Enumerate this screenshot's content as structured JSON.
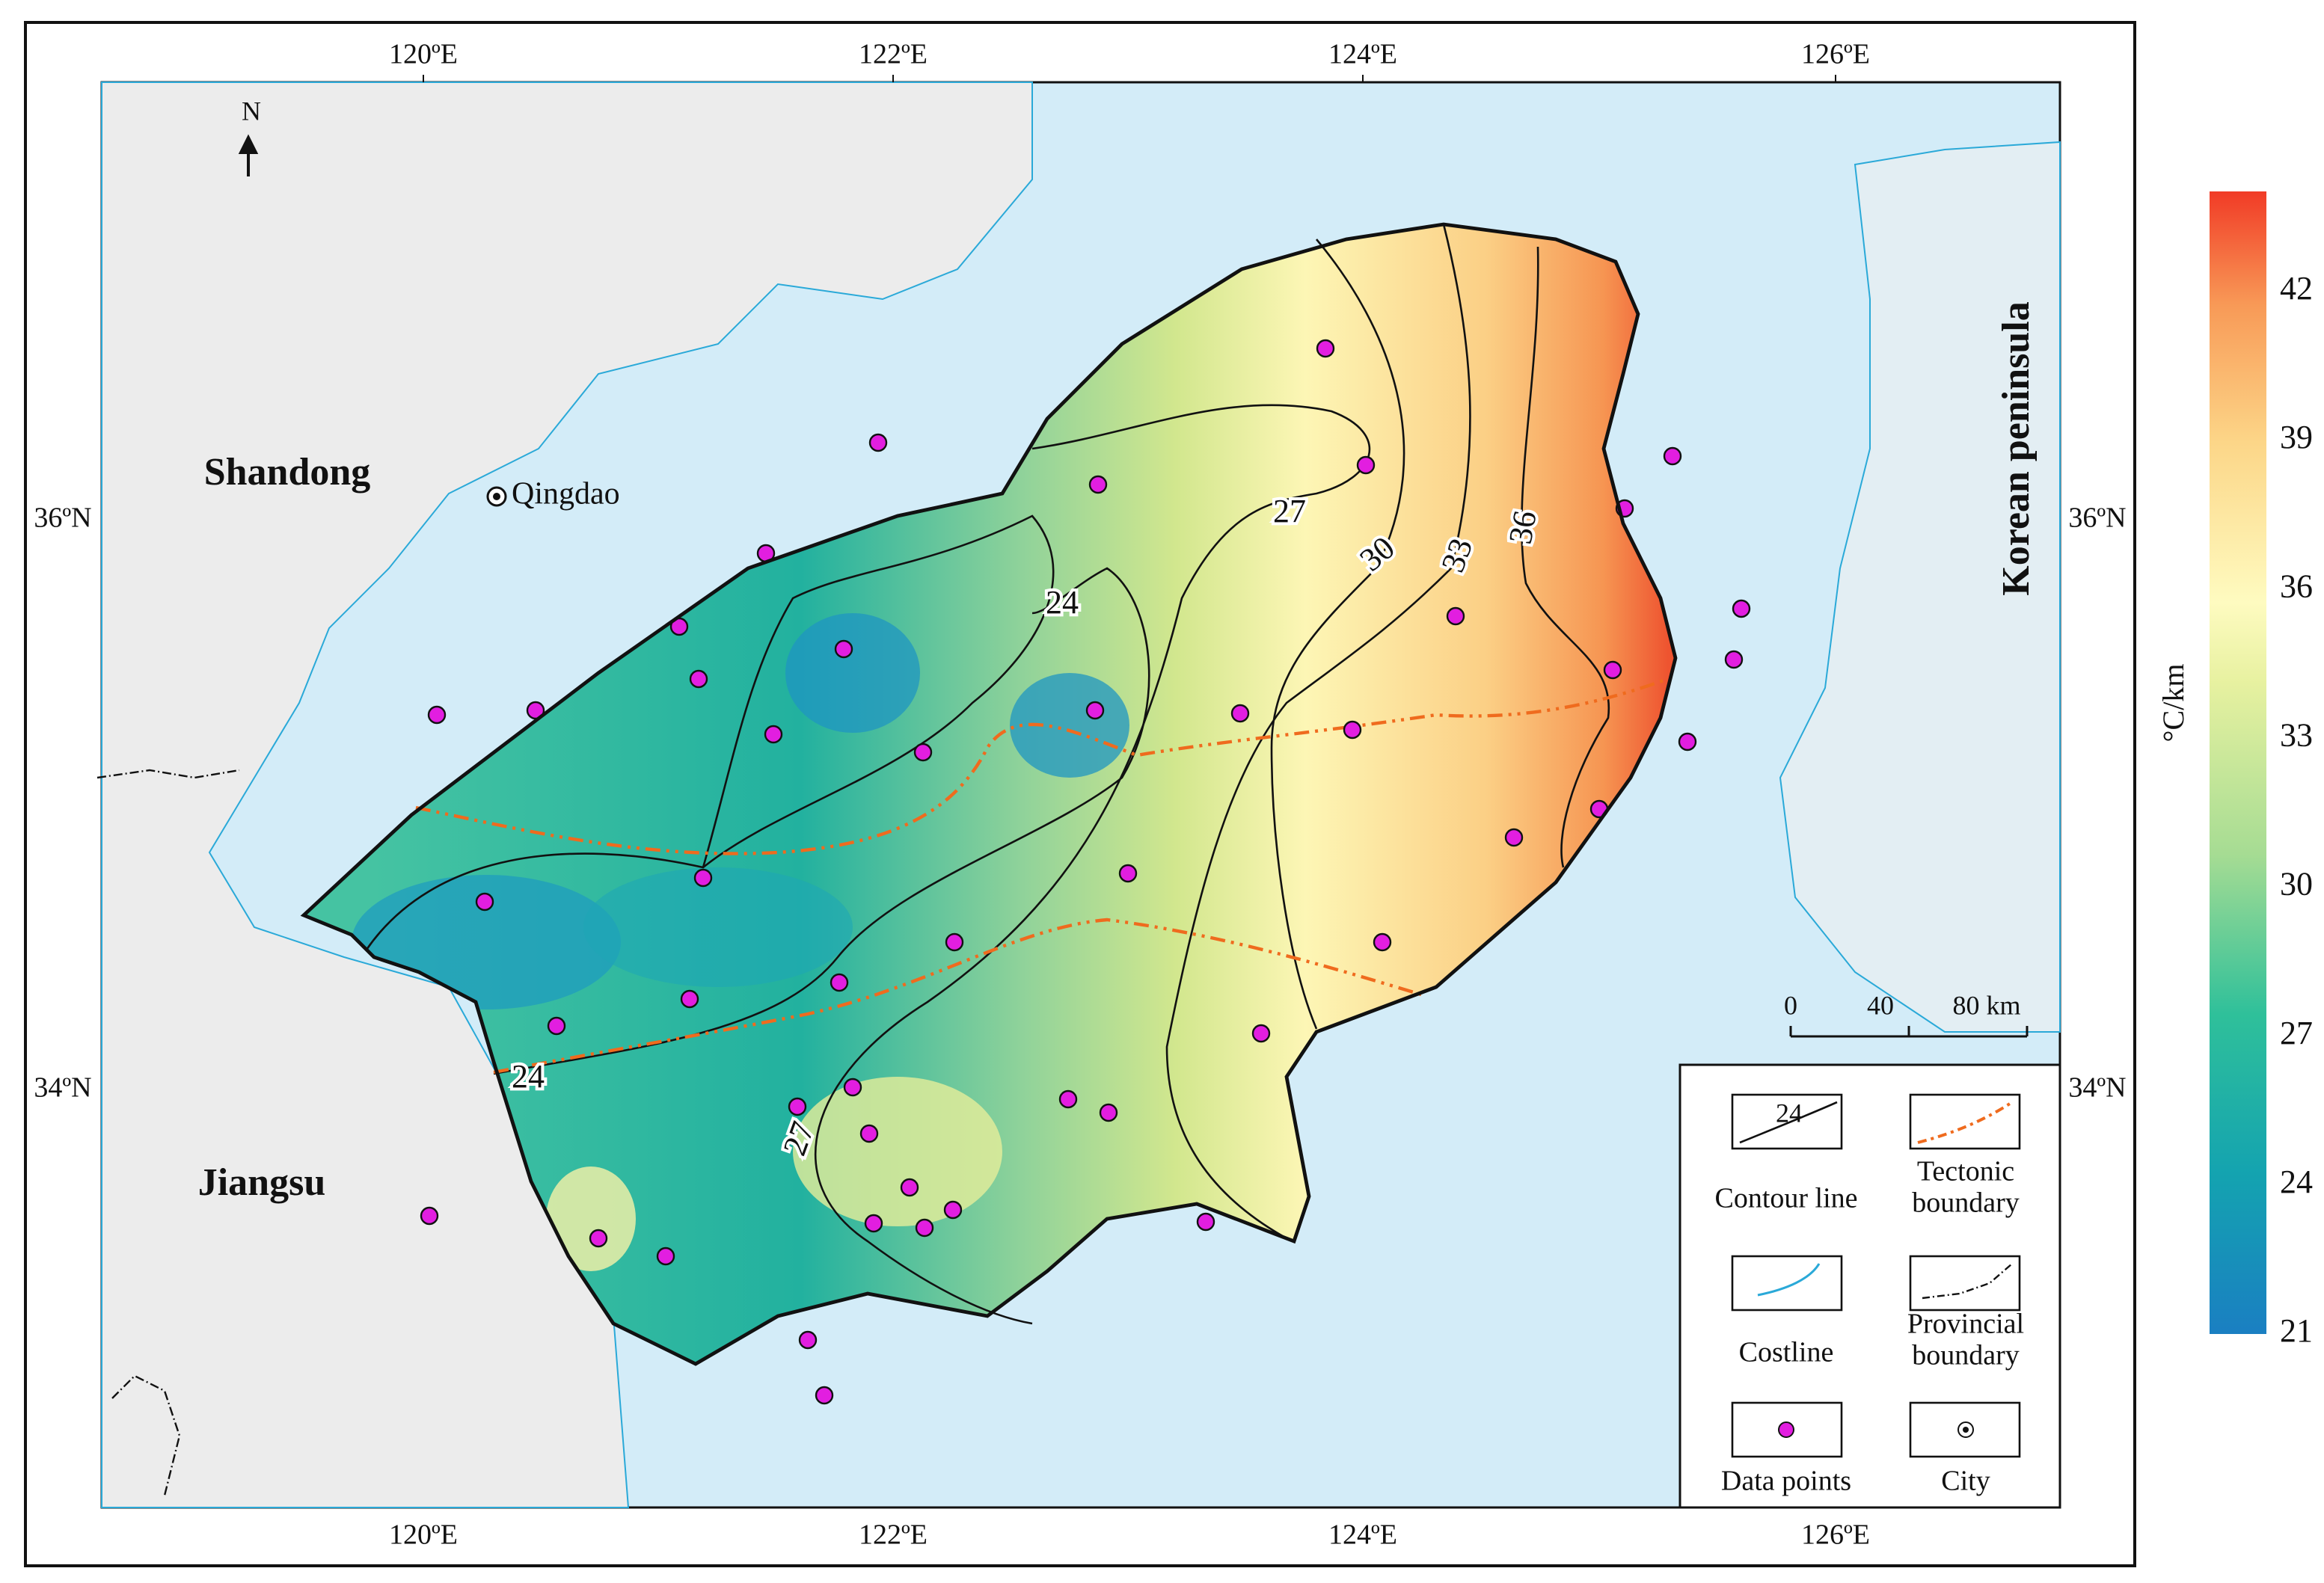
{
  "map": {
    "lon_labels": [
      "120ºE",
      "122ºE",
      "124ºE",
      "126ºE"
    ],
    "lat_labels": [
      "36ºN",
      "34ºN"
    ],
    "north": "N",
    "places": {
      "shandong": "Shandong",
      "qingdao": "Qingdao",
      "jiangsu": "Jiangsu",
      "korea": "Korean peninsula"
    },
    "contour_labels": [
      "24",
      "27",
      "30",
      "33",
      "36",
      "24",
      "27"
    ],
    "scale_bar": [
      "0",
      "40",
      "80 km"
    ],
    "legend": {
      "sample": "24",
      "items": [
        [
          "Contour line"
        ],
        [
          "Tectonic",
          "boundary"
        ],
        [
          "Costline"
        ],
        [
          "Provincial",
          "boundary"
        ],
        [
          "Data points"
        ],
        [
          "City"
        ]
      ]
    }
  },
  "colorbar": {
    "unit": "°C/km",
    "ticks": [
      "42",
      "39",
      "36",
      "33",
      "30",
      "27",
      "24",
      "21"
    ]
  }
}
